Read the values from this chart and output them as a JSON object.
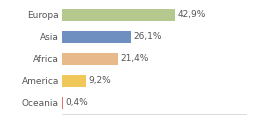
{
  "categories": [
    "Europa",
    "Asia",
    "Africa",
    "America",
    "Oceania"
  ],
  "values": [
    42.9,
    26.1,
    21.4,
    9.2,
    0.4
  ],
  "labels": [
    "42,9%",
    "26,1%",
    "21,4%",
    "9,2%",
    "0,4%"
  ],
  "bar_colors": [
    "#b5c98e",
    "#6e8fc0",
    "#e8b98a",
    "#f0c85a",
    "#e87070"
  ],
  "background_color": "#ffffff",
  "xlim": [
    0,
    70
  ],
  "label_fontsize": 6.5,
  "tick_fontsize": 6.5,
  "figwidth": 2.8,
  "figheight": 1.2,
  "dpi": 100
}
